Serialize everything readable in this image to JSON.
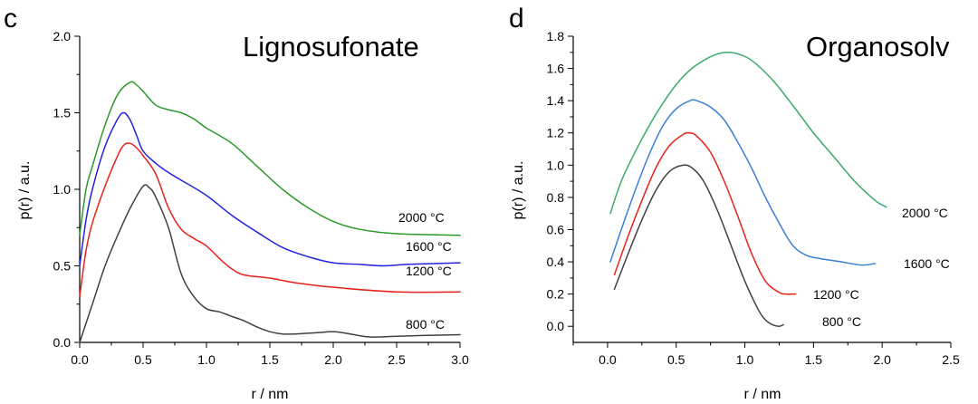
{
  "chart_data": [
    {
      "type": "line",
      "letter": "c",
      "title": "Lignosufonate",
      "xlabel": "r / nm",
      "ylabel": "p(r) / a.u.",
      "xlim": [
        0,
        3.0
      ],
      "ylim": [
        0,
        2.0
      ],
      "xticks": [
        0,
        0.5,
        1.0,
        1.5,
        2.0,
        2.5,
        3.0
      ],
      "xtick_labels": [
        "0.0",
        "0.5",
        "1.0",
        "1.5",
        "2.0",
        "2.5",
        "3.0"
      ],
      "yticks": [
        0,
        0.5,
        1.0,
        1.5,
        2.0
      ],
      "ytick_labels": [
        "0.0",
        "0.5",
        "1.0",
        "1.5",
        "2.0"
      ],
      "grid": false,
      "series": [
        {
          "name": "800 °C",
          "color": "#404040",
          "x": [
            0,
            0.1,
            0.2,
            0.3,
            0.4,
            0.5,
            0.55,
            0.6,
            0.7,
            0.8,
            0.9,
            1.0,
            1.1,
            1.2,
            1.3,
            1.4,
            1.5,
            1.6,
            1.7,
            1.8,
            1.9,
            2.0,
            2.1,
            2.2,
            2.3,
            2.5,
            2.7,
            3.0
          ],
          "y": [
            0,
            0.25,
            0.5,
            0.7,
            0.88,
            1.02,
            1.01,
            0.95,
            0.75,
            0.45,
            0.3,
            0.22,
            0.2,
            0.17,
            0.14,
            0.1,
            0.07,
            0.055,
            0.055,
            0.06,
            0.065,
            0.07,
            0.06,
            0.045,
            0.035,
            0.04,
            0.045,
            0.05
          ]
        },
        {
          "name": "1200 °C",
          "color": "#e8221a",
          "x": [
            0,
            0.05,
            0.1,
            0.2,
            0.3,
            0.35,
            0.4,
            0.45,
            0.5,
            0.6,
            0.7,
            0.8,
            0.9,
            1.0,
            1.1,
            1.2,
            1.3,
            1.5,
            1.7,
            2.0,
            2.5,
            3.0
          ],
          "y": [
            0.3,
            0.6,
            0.78,
            1.02,
            1.22,
            1.29,
            1.3,
            1.27,
            1.22,
            1.1,
            0.88,
            0.74,
            0.68,
            0.63,
            0.55,
            0.48,
            0.44,
            0.42,
            0.39,
            0.36,
            0.33,
            0.33
          ]
        },
        {
          "name": "1600 °C",
          "color": "#2222e0",
          "x": [
            0,
            0.05,
            0.1,
            0.2,
            0.3,
            0.35,
            0.4,
            0.45,
            0.5,
            0.6,
            0.7,
            0.8,
            1.0,
            1.2,
            1.4,
            1.6,
            1.8,
            2.0,
            2.2,
            2.4,
            2.6,
            3.0
          ],
          "y": [
            0.5,
            0.8,
            1.0,
            1.28,
            1.46,
            1.5,
            1.45,
            1.35,
            1.25,
            1.17,
            1.11,
            1.06,
            0.96,
            0.83,
            0.72,
            0.62,
            0.56,
            0.52,
            0.51,
            0.5,
            0.51,
            0.52
          ]
        },
        {
          "name": "2000 °C",
          "color": "#2a9a2a",
          "x": [
            0,
            0.05,
            0.1,
            0.2,
            0.3,
            0.4,
            0.45,
            0.5,
            0.6,
            0.7,
            0.8,
            0.9,
            1.0,
            1.2,
            1.4,
            1.6,
            1.8,
            2.0,
            2.2,
            2.5,
            3.0
          ],
          "y": [
            0.7,
            1.0,
            1.15,
            1.42,
            1.62,
            1.7,
            1.68,
            1.64,
            1.55,
            1.52,
            1.5,
            1.46,
            1.4,
            1.3,
            1.15,
            1.0,
            0.88,
            0.79,
            0.74,
            0.71,
            0.7
          ]
        }
      ]
    },
    {
      "type": "line",
      "letter": "d",
      "title": "Organosolv",
      "xlabel": "r / nm",
      "ylabel": "p(r) / a.u.",
      "xlim": [
        -0.25,
        2.5
      ],
      "ylim": [
        -0.1,
        1.8
      ],
      "xticks": [
        0,
        0.5,
        1.0,
        1.5,
        2.0,
        2.5
      ],
      "xtick_labels": [
        "0.0",
        "0.5",
        "1.0",
        "1.5",
        "2.0",
        "2.5"
      ],
      "yticks": [
        0,
        0.2,
        0.4,
        0.6,
        0.8,
        1.0,
        1.2,
        1.4,
        1.6,
        1.8
      ],
      "ytick_labels": [
        "0.0",
        "0.2",
        "0.4",
        "0.6",
        "0.8",
        "1.0",
        "1.2",
        "1.4",
        "1.6",
        "1.8"
      ],
      "grid": false,
      "series": [
        {
          "name": "800 °C",
          "color": "#404040",
          "x": [
            0.05,
            0.15,
            0.25,
            0.35,
            0.45,
            0.55,
            0.62,
            0.7,
            0.8,
            0.9,
            1.0,
            1.1,
            1.15,
            1.2,
            1.25,
            1.28
          ],
          "y": [
            0.23,
            0.45,
            0.66,
            0.84,
            0.96,
            1.0,
            0.98,
            0.9,
            0.72,
            0.5,
            0.28,
            0.1,
            0.04,
            0.01,
            0.0,
            0.01
          ]
        },
        {
          "name": "1200 °C",
          "color": "#e8221a",
          "x": [
            0.05,
            0.15,
            0.25,
            0.35,
            0.45,
            0.55,
            0.6,
            0.65,
            0.75,
            0.85,
            0.95,
            1.05,
            1.15,
            1.25,
            1.3,
            1.37
          ],
          "y": [
            0.32,
            0.56,
            0.78,
            0.98,
            1.12,
            1.19,
            1.2,
            1.18,
            1.08,
            0.9,
            0.68,
            0.45,
            0.28,
            0.21,
            0.2,
            0.2
          ]
        },
        {
          "name": "1600 °C",
          "color": "#3a7fd5",
          "x": [
            0.02,
            0.1,
            0.2,
            0.3,
            0.4,
            0.5,
            0.6,
            0.65,
            0.75,
            0.85,
            0.95,
            1.05,
            1.15,
            1.25,
            1.35,
            1.45,
            1.55,
            1.7,
            1.85,
            1.95
          ],
          "y": [
            0.4,
            0.6,
            0.84,
            1.06,
            1.24,
            1.35,
            1.4,
            1.4,
            1.36,
            1.28,
            1.14,
            0.98,
            0.8,
            0.64,
            0.5,
            0.44,
            0.42,
            0.4,
            0.38,
            0.39
          ]
        },
        {
          "name": "2000 °C",
          "color": "#3aaa6a",
          "x": [
            0.02,
            0.1,
            0.2,
            0.3,
            0.4,
            0.5,
            0.6,
            0.7,
            0.8,
            0.88,
            0.95,
            1.05,
            1.2,
            1.35,
            1.5,
            1.65,
            1.8,
            1.95,
            2.03
          ],
          "y": [
            0.7,
            0.9,
            1.08,
            1.24,
            1.38,
            1.5,
            1.59,
            1.65,
            1.69,
            1.7,
            1.69,
            1.65,
            1.53,
            1.37,
            1.2,
            1.05,
            0.9,
            0.78,
            0.74
          ]
        }
      ]
    }
  ]
}
